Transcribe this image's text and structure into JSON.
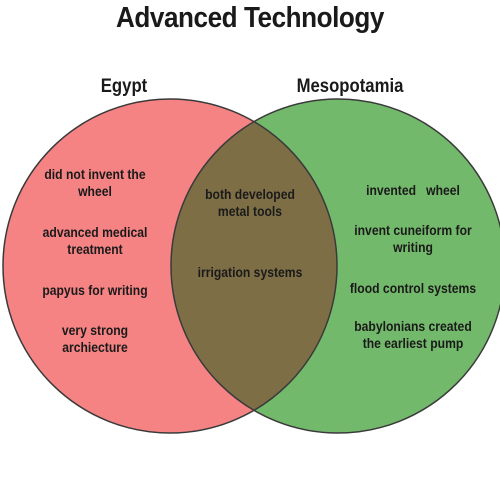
{
  "title": "Advanced Technology",
  "colors": {
    "left_circle": "#f58383",
    "right_circle": "#73b96b",
    "overlap": "#7e6e46",
    "outline": "#3a3a3a",
    "text": "#1a1a1a"
  },
  "sets": [
    {
      "label": "Egypt",
      "items": [
        [
          "did not invent the",
          "wheel"
        ],
        [
          "advanced medical",
          "treatment"
        ],
        [
          "papyus for writing"
        ],
        [
          "very strong",
          "archiecture"
        ]
      ]
    },
    {
      "label": "Mesopotamia",
      "items": [
        [
          "invented   wheel"
        ],
        [
          "invent cuneiform for",
          "writing"
        ],
        [
          "flood control systems"
        ],
        [
          "babylonians created",
          "the earliest pump"
        ]
      ]
    }
  ],
  "intersection": {
    "items": [
      [
        "both developed",
        "metal tools"
      ],
      [
        "irrigation systems"
      ]
    ]
  }
}
